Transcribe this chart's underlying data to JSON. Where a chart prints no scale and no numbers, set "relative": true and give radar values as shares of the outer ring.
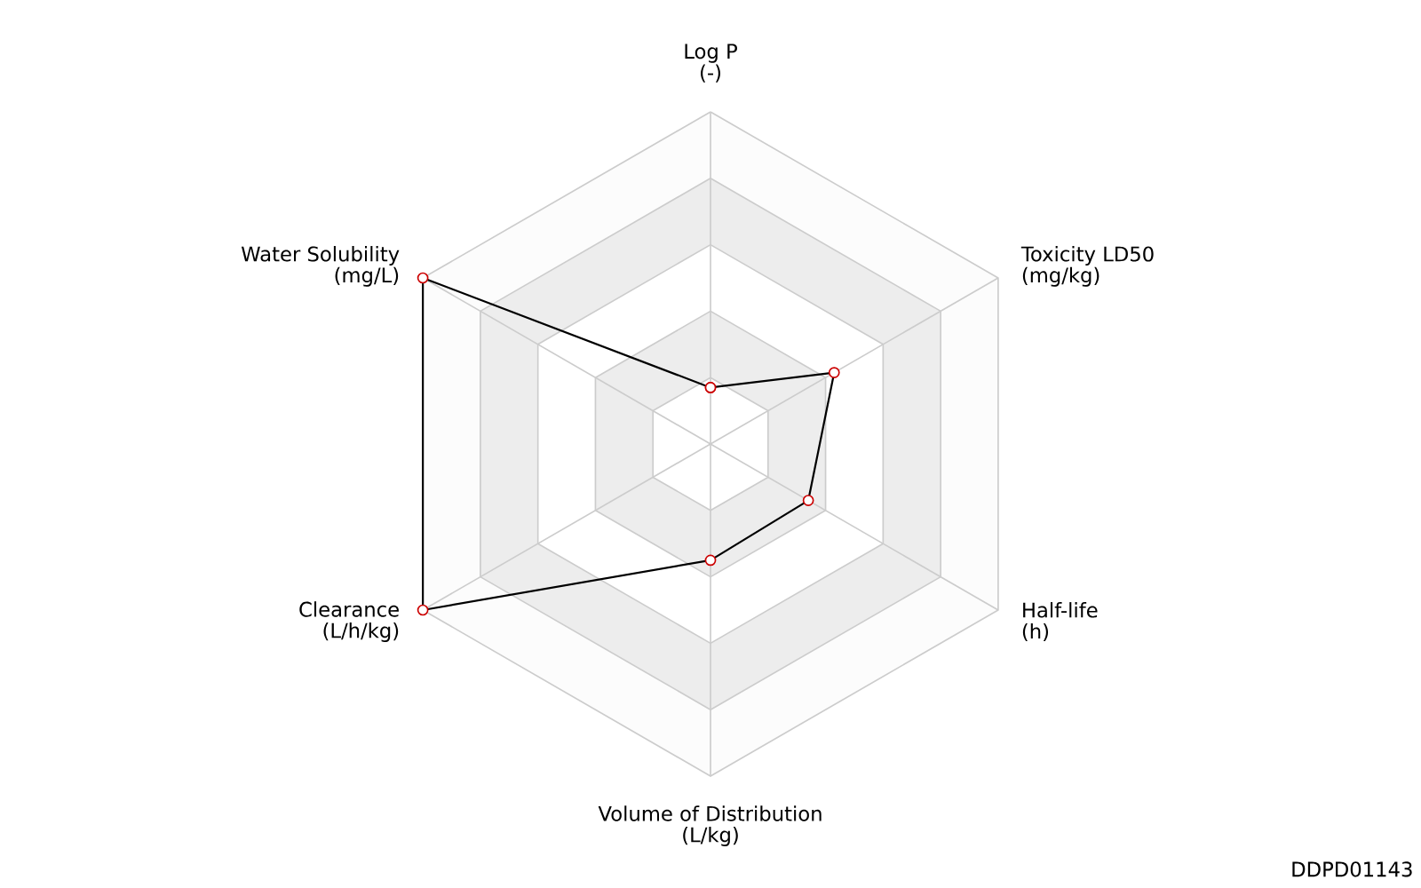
{
  "chart_data": {
    "type": "radar",
    "relative": true,
    "marker": "circle",
    "grid": true,
    "categories": [
      "Log P\n(-)",
      "Toxicity LD50\n(mg/kg)",
      "Half-life\n(h)",
      "Volume of Distribution\n(L/kg)",
      "Clearance\n(L/h/kg)",
      "Water Solubility\n(mg/L)"
    ],
    "series": [
      {
        "color": "#000000",
        "values": [
          0.17,
          0.43,
          0.34,
          0.35,
          1.0,
          1.0
        ]
      }
    ],
    "annotations": [
      "DDPD01143"
    ]
  }
}
